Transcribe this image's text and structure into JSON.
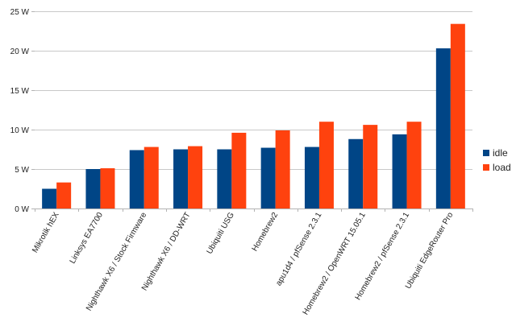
{
  "chart_data": {
    "type": "bar",
    "categories": [
      "Mikrotik hEX",
      "Linksys EA7700",
      "Nighthawk X6 / Stock Firmware",
      "Nighthawk X6 / DD-WRT",
      "Ubiquiti USG",
      "Homebrew2",
      "apu1d4 / pfSense 2.3.1",
      "Homebrew2 / OpenWRT 15.05.1",
      "Homebrew2 / pfSense 2.3.1",
      "Ubiquiti EdgeRouter Pro"
    ],
    "series": [
      {
        "name": "idle",
        "color": "#004586",
        "values": [
          2.5,
          5.0,
          7.4,
          7.5,
          7.5,
          7.7,
          7.8,
          8.8,
          9.4,
          20.3
        ]
      },
      {
        "name": "load",
        "color": "#ff420e",
        "values": [
          3.3,
          5.1,
          7.8,
          7.9,
          9.6,
          9.9,
          11.0,
          10.6,
          11.0,
          23.4
        ]
      }
    ],
    "y_ticks": [
      "0 W",
      "5 W",
      "10 W",
      "15 W",
      "20 W",
      "25 W"
    ],
    "ylim": [
      0,
      25
    ],
    "grid": true,
    "legend": "right",
    "title": "",
    "xlabel": "",
    "ylabel": ""
  }
}
